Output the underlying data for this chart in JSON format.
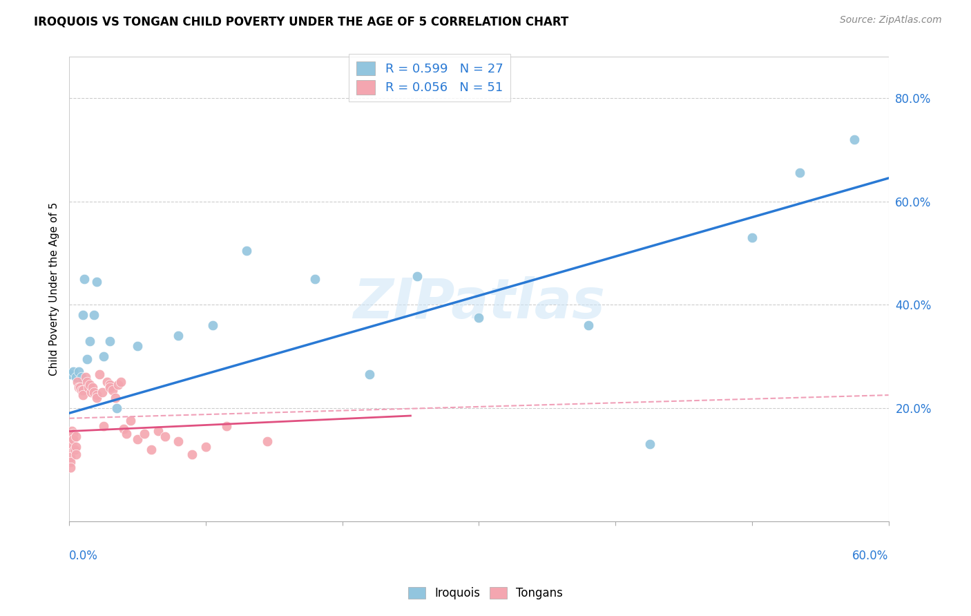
{
  "title": "IROQUOIS VS TONGAN CHILD POVERTY UNDER THE AGE OF 5 CORRELATION CHART",
  "source": "Source: ZipAtlas.com",
  "ylabel": "Child Poverty Under the Age of 5",
  "ytick_values": [
    0.2,
    0.4,
    0.6,
    0.8
  ],
  "xlim": [
    0.0,
    0.6
  ],
  "ylim": [
    -0.02,
    0.88
  ],
  "iroquois_color": "#92c5de",
  "tongan_color": "#f4a6b0",
  "iroquois_line_color": "#2979d4",
  "tongan_line_solid_color": "#e05080",
  "tongan_line_dash_color": "#f0a0b8",
  "watermark": "ZIPatlas",
  "iroquois_x": [
    0.001,
    0.003,
    0.005,
    0.007,
    0.009,
    0.01,
    0.011,
    0.013,
    0.015,
    0.018,
    0.02,
    0.025,
    0.03,
    0.035,
    0.05,
    0.08,
    0.105,
    0.13,
    0.18,
    0.22,
    0.255,
    0.3,
    0.38,
    0.425,
    0.5,
    0.535,
    0.575
  ],
  "iroquois_y": [
    0.265,
    0.27,
    0.26,
    0.27,
    0.26,
    0.38,
    0.45,
    0.295,
    0.33,
    0.38,
    0.445,
    0.3,
    0.33,
    0.2,
    0.32,
    0.34,
    0.36,
    0.505,
    0.45,
    0.265,
    0.455,
    0.375,
    0.36,
    0.13,
    0.53,
    0.655,
    0.72
  ],
  "tongan_x": [
    0.001,
    0.001,
    0.001,
    0.001,
    0.002,
    0.002,
    0.002,
    0.003,
    0.003,
    0.004,
    0.005,
    0.005,
    0.005,
    0.006,
    0.007,
    0.008,
    0.009,
    0.01,
    0.01,
    0.012,
    0.013,
    0.014,
    0.015,
    0.016,
    0.017,
    0.018,
    0.02,
    0.02,
    0.022,
    0.024,
    0.025,
    0.028,
    0.03,
    0.03,
    0.032,
    0.034,
    0.036,
    0.038,
    0.04,
    0.042,
    0.045,
    0.05,
    0.055,
    0.06,
    0.065,
    0.07,
    0.08,
    0.09,
    0.1,
    0.115,
    0.145
  ],
  "tongan_y": [
    0.12,
    0.105,
    0.095,
    0.085,
    0.155,
    0.14,
    0.13,
    0.15,
    0.14,
    0.12,
    0.145,
    0.125,
    0.11,
    0.25,
    0.24,
    0.24,
    0.235,
    0.235,
    0.225,
    0.26,
    0.25,
    0.24,
    0.245,
    0.23,
    0.24,
    0.23,
    0.225,
    0.22,
    0.265,
    0.23,
    0.165,
    0.25,
    0.245,
    0.24,
    0.235,
    0.22,
    0.245,
    0.25,
    0.16,
    0.15,
    0.175,
    0.14,
    0.15,
    0.12,
    0.155,
    0.145,
    0.135,
    0.11,
    0.125,
    0.165,
    0.135
  ],
  "iroquois_line_x": [
    0.0,
    0.6
  ],
  "iroquois_line_y": [
    0.19,
    0.645
  ],
  "tongan_solid_line_x": [
    0.0,
    0.25
  ],
  "tongan_solid_line_y": [
    0.155,
    0.185
  ],
  "tongan_dash_line_x": [
    0.0,
    0.6
  ],
  "tongan_dash_line_y": [
    0.18,
    0.225
  ]
}
